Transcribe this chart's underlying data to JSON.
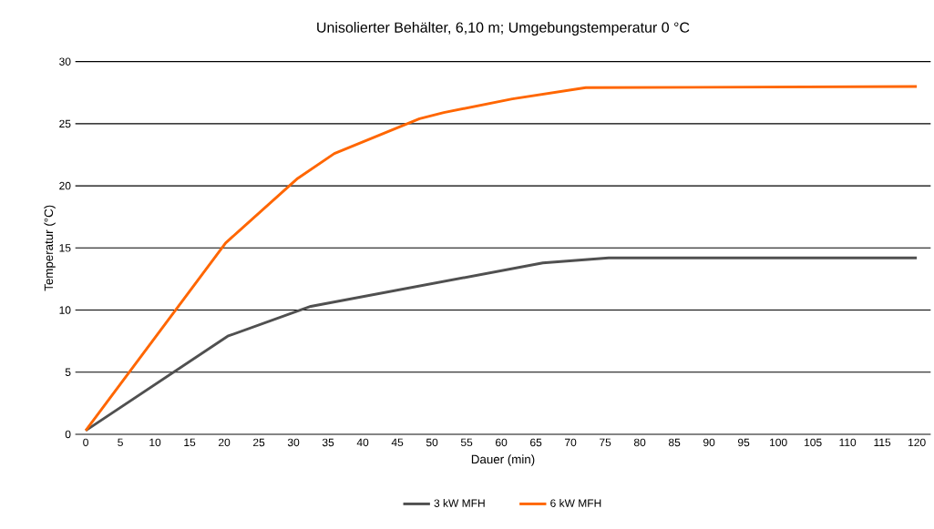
{
  "chart_data": {
    "type": "line",
    "title": "Unisolierter Behälter, 6,10 m; Umgebungstemperatur 0 °C",
    "xlabel": "Dauer (min)",
    "ylabel": "Temperatur (°C)",
    "series": [
      {
        "name": "3 kW MFH",
        "color": "#505050",
        "x": [
          0,
          20.5,
          32.5,
          66,
          75.5,
          120
        ],
        "values": [
          0.3,
          7.9,
          10.3,
          13.8,
          14.2,
          14.2
        ]
      },
      {
        "name": "6 kW MFH",
        "color": "#ff6600",
        "x": [
          0,
          20.2,
          30.6,
          35.9,
          48.2,
          51.7,
          61.6,
          72.2,
          120
        ],
        "values": [
          0.3,
          15.4,
          20.6,
          22.6,
          25.4,
          25.9,
          27.0,
          27.9,
          28.0
        ]
      }
    ],
    "xlim": [
      -1.5,
      122
    ],
    "ylim": [
      0,
      30
    ],
    "xticks": [
      0,
      5,
      10,
      15,
      20,
      25,
      30,
      35,
      40,
      45,
      50,
      55,
      60,
      65,
      70,
      75,
      80,
      85,
      90,
      95,
      100,
      105,
      110,
      115,
      120
    ],
    "yticks": [
      0,
      5,
      10,
      15,
      20,
      25,
      30
    ],
    "grid": "y",
    "legend": "bottom",
    "marker": "none",
    "line_style": "solid"
  }
}
